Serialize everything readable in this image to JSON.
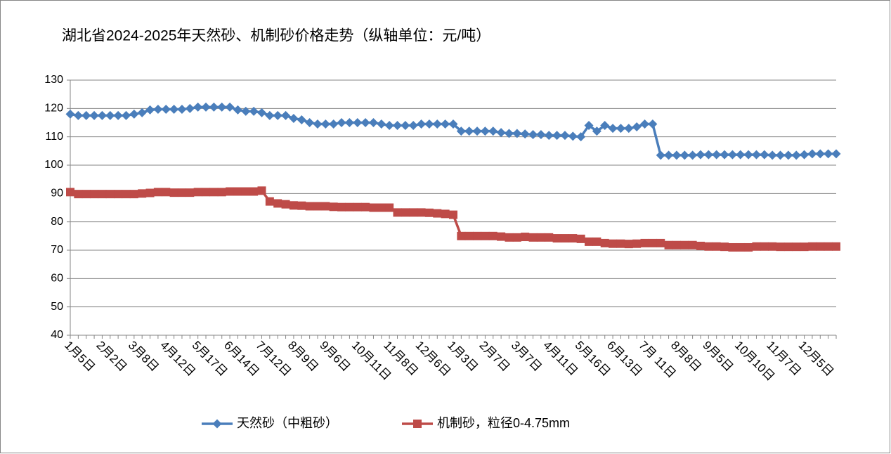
{
  "chart_data": {
    "type": "line",
    "title": "湖北省2024-2025年天然砂、机制砂价格走势（纵轴单位：元/吨）",
    "categories": [
      "1月5日",
      null,
      null,
      null,
      "2月2日",
      null,
      null,
      null,
      "3月8日",
      null,
      null,
      null,
      "4月12日",
      null,
      null,
      null,
      "5月17日",
      null,
      null,
      null,
      "6月14日",
      null,
      null,
      null,
      "7月12日",
      null,
      null,
      null,
      "8月9日",
      null,
      null,
      null,
      "9月6日",
      null,
      null,
      null,
      "10月11日",
      null,
      null,
      null,
      "11月8日",
      null,
      null,
      null,
      "12月6日",
      null,
      null,
      null,
      "1月3日",
      null,
      null,
      null,
      "2月7日",
      null,
      null,
      null,
      "3月7日",
      null,
      null,
      null,
      "4月11日",
      null,
      null,
      null,
      "5月16日",
      null,
      null,
      null,
      "6月13日",
      null,
      null,
      null,
      "7月 11日",
      null,
      null,
      null,
      "8月8日",
      null,
      null,
      null,
      "9月5日",
      null,
      null,
      null,
      "10月10日",
      null,
      null,
      null,
      "11月7日",
      null,
      null,
      null,
      "12月5日",
      null,
      null,
      null,
      null
    ],
    "series": [
      {
        "name": "天然砂（中粗砂）",
        "color": "#4a7ebb",
        "marker": "diamond",
        "values": [
          118,
          117.5,
          117.5,
          117.5,
          117.5,
          117.5,
          117.5,
          117.5,
          118,
          118.5,
          119.5,
          119.7,
          119.7,
          119.7,
          119.7,
          120,
          120.5,
          120.5,
          120.5,
          120.5,
          120.5,
          119.5,
          119,
          119,
          118.5,
          117.5,
          117.5,
          117.5,
          116.5,
          116,
          115,
          114.5,
          114.5,
          114.5,
          115,
          115,
          115,
          115,
          115,
          114.5,
          114,
          114,
          114,
          114,
          114.5,
          114.5,
          114.5,
          114.5,
          114.5,
          112,
          112,
          112,
          112,
          112,
          111.5,
          111.2,
          111.2,
          111,
          110.8,
          110.8,
          110.5,
          110.5,
          110.5,
          110.2,
          110,
          114,
          112,
          114,
          113,
          113,
          113,
          113.5,
          114.5,
          114.5,
          103.5,
          103.5,
          103.5,
          103.5,
          103.5,
          103.7,
          103.7,
          103.7,
          103.7,
          103.7,
          103.7,
          103.7,
          103.7,
          103.7,
          103.5,
          103.5,
          103.5,
          103.5,
          103.7,
          104,
          104,
          104,
          104
        ]
      },
      {
        "name": "机制砂，粒径0-4.75mm",
        "color": "#be4b48",
        "marker": "square",
        "values": [
          90.5,
          89.8,
          89.8,
          89.8,
          89.8,
          89.8,
          89.8,
          89.8,
          89.8,
          90,
          90.2,
          90.5,
          90.5,
          90.3,
          90.3,
          90.3,
          90.5,
          90.5,
          90.5,
          90.5,
          90.7,
          90.7,
          90.7,
          90.7,
          91,
          87.2,
          86.5,
          86.2,
          85.8,
          85.7,
          85.5,
          85.5,
          85.5,
          85.3,
          85.2,
          85.2,
          85.2,
          85.2,
          85,
          85,
          85,
          83.3,
          83.3,
          83.3,
          83.3,
          83.2,
          83,
          82.8,
          82.5,
          75,
          75,
          75,
          75,
          75,
          74.8,
          74.5,
          74.5,
          74.7,
          74.5,
          74.5,
          74.5,
          74.2,
          74.2,
          74.2,
          74,
          73,
          73,
          72.5,
          72.3,
          72.3,
          72.2,
          72.3,
          72.5,
          72.5,
          72.5,
          71.8,
          71.8,
          71.8,
          71.8,
          71.5,
          71.3,
          71.3,
          71.2,
          71,
          71,
          71,
          71.3,
          71.3,
          71.3,
          71.2,
          71.2,
          71.2,
          71.2,
          71.3,
          71.3,
          71.3,
          71.3
        ]
      }
    ],
    "ylim": [
      40,
      130
    ],
    "yticks": [
      40,
      50,
      60,
      70,
      80,
      90,
      100,
      110,
      120,
      130
    ],
    "grid": true,
    "legend": "bottom"
  }
}
